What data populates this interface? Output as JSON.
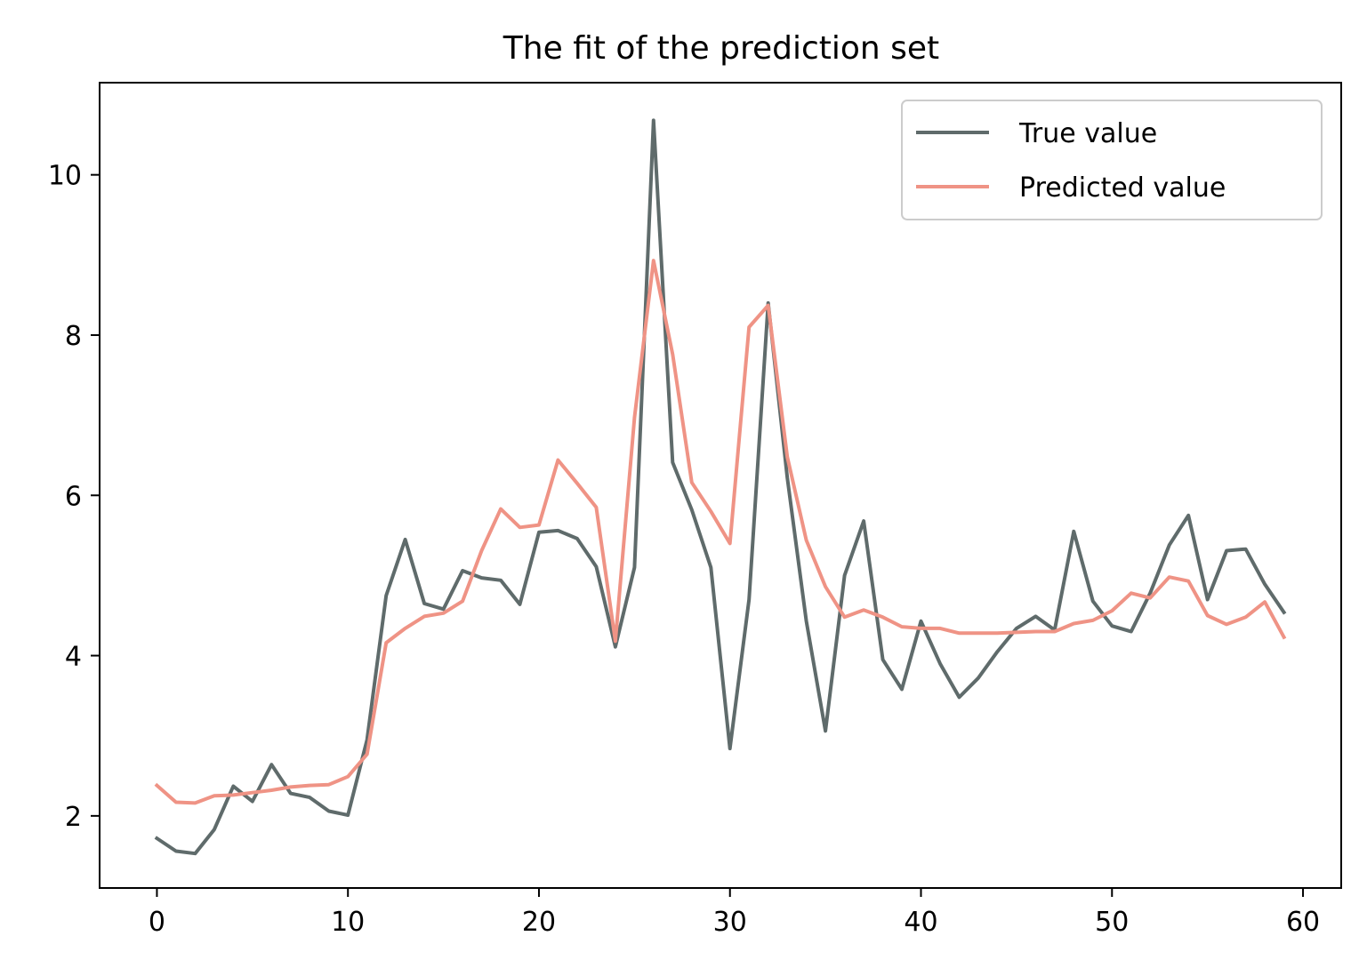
{
  "chart_data": {
    "type": "line",
    "title": "The fit of the prediction set",
    "xlabel": "",
    "ylabel": "",
    "xlim": [
      -3,
      62
    ],
    "ylim": [
      1.1,
      11.15
    ],
    "xticks": [
      0,
      10,
      20,
      30,
      40,
      50,
      60
    ],
    "yticks": [
      2,
      4,
      6,
      8,
      10
    ],
    "grid": false,
    "legend_position": "top-right",
    "x": [
      0,
      1,
      2,
      3,
      4,
      5,
      6,
      7,
      8,
      9,
      10,
      11,
      12,
      13,
      14,
      15,
      16,
      17,
      18,
      19,
      20,
      21,
      22,
      23,
      24,
      25,
      26,
      27,
      28,
      29,
      30,
      31,
      32,
      33,
      34,
      35,
      36,
      37,
      38,
      39,
      40,
      41,
      42,
      43,
      44,
      45,
      46,
      47,
      48,
      49,
      50,
      51,
      52,
      53,
      54,
      55,
      56,
      57,
      58,
      59
    ],
    "series": [
      {
        "name": "True value",
        "color": "#5f6b6b",
        "values": [
          1.72,
          1.56,
          1.53,
          1.83,
          2.37,
          2.18,
          2.64,
          2.28,
          2.23,
          2.06,
          2.01,
          2.95,
          4.75,
          5.45,
          4.65,
          4.58,
          5.06,
          4.97,
          4.94,
          4.64,
          5.54,
          5.56,
          5.46,
          5.11,
          4.11,
          5.1,
          10.68,
          6.41,
          5.82,
          5.1,
          2.84,
          4.7,
          8.4,
          6.22,
          4.43,
          3.06,
          5.0,
          5.68,
          3.95,
          3.58,
          4.43,
          3.9,
          3.48,
          3.72,
          4.05,
          4.34,
          4.49,
          4.32,
          5.55,
          4.68,
          4.37,
          4.3,
          4.78,
          5.38,
          5.75,
          4.7,
          5.31,
          5.33,
          4.89,
          4.54
        ]
      },
      {
        "name": "Predicted value",
        "color": "#ef9385",
        "values": [
          2.38,
          2.17,
          2.16,
          2.25,
          2.26,
          2.29,
          2.32,
          2.36,
          2.38,
          2.39,
          2.49,
          2.77,
          4.16,
          4.34,
          4.49,
          4.53,
          4.68,
          5.31,
          5.83,
          5.6,
          5.63,
          6.44,
          6.15,
          5.85,
          4.18,
          6.97,
          8.93,
          7.76,
          6.16,
          5.8,
          5.4,
          8.1,
          8.37,
          6.48,
          5.44,
          4.86,
          4.48,
          4.57,
          4.48,
          4.36,
          4.34,
          4.34,
          4.28,
          4.28,
          4.28,
          4.29,
          4.3,
          4.3,
          4.4,
          4.44,
          4.56,
          4.78,
          4.72,
          4.98,
          4.93,
          4.5,
          4.39,
          4.48,
          4.67,
          4.23
        ]
      }
    ]
  }
}
